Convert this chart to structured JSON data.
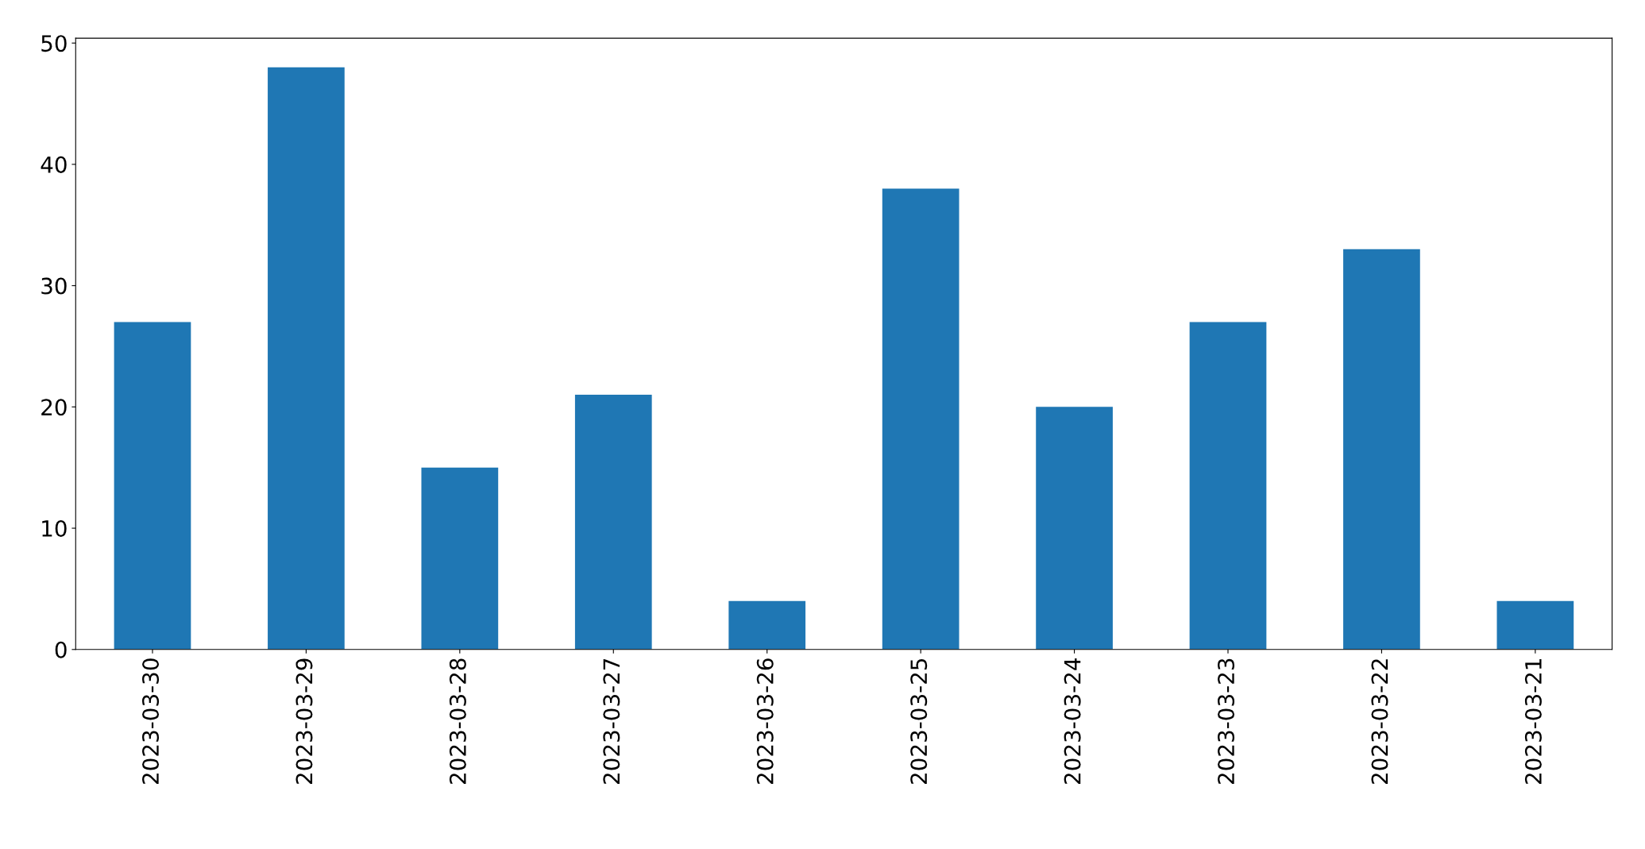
{
  "chart_data": {
    "type": "bar",
    "categories": [
      "2023-03-30",
      "2023-03-29",
      "2023-03-28",
      "2023-03-27",
      "2023-03-26",
      "2023-03-25",
      "2023-03-24",
      "2023-03-23",
      "2023-03-22",
      "2023-03-21"
    ],
    "values": [
      27,
      48,
      15,
      21,
      4,
      38,
      20,
      27,
      33,
      4
    ],
    "color": "#1f77b4",
    "ylim": [
      0,
      50.4
    ],
    "yticks": [
      0,
      10,
      20,
      30,
      40,
      50
    ],
    "grid": false,
    "legend": false
  }
}
